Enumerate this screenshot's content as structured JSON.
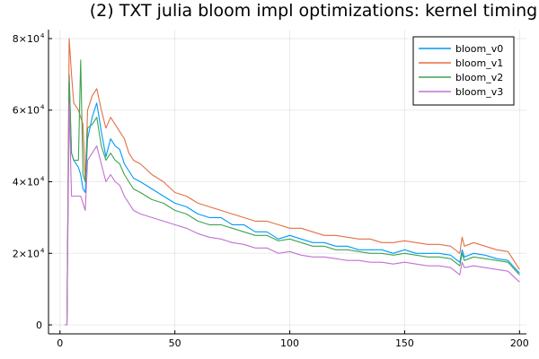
{
  "chart_data": {
    "type": "line",
    "title": "(2) TXT julia bloom impl optimizations: kernel timing",
    "xlabel": "",
    "ylabel": "",
    "xlim": [
      0,
      200
    ],
    "ylim": [
      0,
      80000
    ],
    "grid": true,
    "legend_position": "top-right",
    "x_ticks": [
      0,
      50,
      100,
      150,
      200
    ],
    "y_ticks": [
      {
        "value": 0,
        "label": "0",
        "exp": ""
      },
      {
        "value": 20000,
        "label": "2×10",
        "exp": "4"
      },
      {
        "value": 40000,
        "label": "4×10",
        "exp": "4"
      },
      {
        "value": 60000,
        "label": "6×10",
        "exp": "4"
      },
      {
        "value": 80000,
        "label": "8×10",
        "exp": "4"
      }
    ],
    "x": [
      2,
      3,
      4,
      5,
      6,
      8,
      9,
      10,
      11,
      12,
      14,
      16,
      18,
      20,
      22,
      24,
      26,
      28,
      30,
      32,
      35,
      40,
      45,
      50,
      55,
      60,
      65,
      70,
      75,
      80,
      85,
      90,
      95,
      100,
      105,
      110,
      115,
      120,
      125,
      130,
      135,
      140,
      145,
      150,
      155,
      160,
      165,
      170,
      174,
      175,
      176,
      180,
      185,
      190,
      195,
      200
    ],
    "series": [
      {
        "name": "bloom_v0",
        "color": "#009AFA",
        "values": [
          0,
          0,
          70000,
          48000,
          46000,
          44000,
          42000,
          38000,
          37000,
          52000,
          58000,
          62000,
          54000,
          47000,
          52000,
          50000,
          49000,
          45000,
          43000,
          41000,
          40000,
          38000,
          36000,
          34000,
          33000,
          31000,
          30000,
          30000,
          28000,
          28000,
          26000,
          26000,
          24000,
          25000,
          24000,
          23000,
          23000,
          22000,
          22000,
          21000,
          21000,
          21000,
          20000,
          21000,
          20000,
          20000,
          20000,
          19500,
          17500,
          21000,
          19000,
          20000,
          19500,
          18500,
          18000,
          14500
        ]
      },
      {
        "name": "bloom_v1",
        "color": "#E36F47",
        "values": [
          0,
          0,
          80000,
          70000,
          62000,
          60000,
          58000,
          56000,
          40000,
          60000,
          64000,
          66000,
          60000,
          55000,
          58000,
          56000,
          54000,
          52000,
          48000,
          46000,
          45000,
          42000,
          40000,
          37000,
          36000,
          34000,
          33000,
          32000,
          31000,
          30000,
          29000,
          29000,
          28000,
          27000,
          27000,
          26000,
          25000,
          25000,
          24500,
          24000,
          24000,
          23000,
          23000,
          23500,
          23000,
          22500,
          22500,
          22000,
          20000,
          24500,
          22000,
          23000,
          22000,
          21000,
          20500,
          15500
        ]
      },
      {
        "name": "bloom_v2",
        "color": "#3EA44E",
        "values": [
          0,
          0,
          68000,
          48000,
          46000,
          46000,
          74000,
          42000,
          40000,
          55000,
          56000,
          58000,
          50000,
          46000,
          48000,
          46000,
          45000,
          42000,
          40000,
          38000,
          37000,
          35000,
          34000,
          32000,
          31000,
          29000,
          28000,
          28000,
          27000,
          26000,
          25000,
          25000,
          23500,
          24000,
          23000,
          22000,
          22000,
          21000,
          21000,
          20500,
          20000,
          20000,
          19500,
          20000,
          19500,
          19000,
          19000,
          18500,
          16500,
          20000,
          18000,
          19000,
          18500,
          18000,
          17500,
          14000
        ]
      },
      {
        "name": "bloom_v3",
        "color": "#C271D2",
        "values": [
          0,
          0,
          62000,
          36000,
          36000,
          36000,
          36000,
          34000,
          32000,
          46000,
          48000,
          50000,
          45000,
          40000,
          42000,
          40000,
          39000,
          36000,
          34000,
          32000,
          31000,
          30000,
          29000,
          28000,
          27000,
          25500,
          24500,
          24000,
          23000,
          22500,
          21500,
          21500,
          20000,
          20500,
          19500,
          19000,
          19000,
          18500,
          18000,
          18000,
          17500,
          17500,
          17000,
          17500,
          17000,
          16500,
          16500,
          16000,
          14000,
          17500,
          16000,
          16500,
          16000,
          15500,
          15000,
          12000
        ]
      }
    ]
  }
}
